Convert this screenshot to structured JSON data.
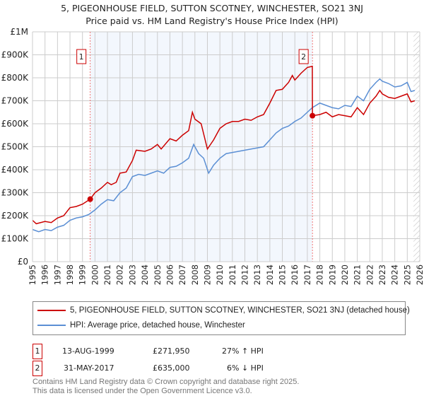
{
  "chart_data": {
    "type": "line",
    "title": "5, PIGEONHOUSE FIELD, SUTTON SCOTNEY, WINCHESTER, SO21 3NJ",
    "subtitle": "Price paid vs. HM Land Registry's House Price Index (HPI)",
    "xlim": [
      1995,
      2026
    ],
    "ylim": [
      0,
      1000000
    ],
    "yticks": [
      {
        "v": 0,
        "label": "£0"
      },
      {
        "v": 100000,
        "label": "£100K"
      },
      {
        "v": 200000,
        "label": "£200K"
      },
      {
        "v": 300000,
        "label": "£300K"
      },
      {
        "v": 400000,
        "label": "£400K"
      },
      {
        "v": 500000,
        "label": "£500K"
      },
      {
        "v": 600000,
        "label": "£600K"
      },
      {
        "v": 700000,
        "label": "£700K"
      },
      {
        "v": 800000,
        "label": "£800K"
      },
      {
        "v": 900000,
        "label": "£900K"
      },
      {
        "v": 1000000,
        "label": "£1M"
      }
    ],
    "xticks": [
      1995,
      1996,
      1997,
      1998,
      1999,
      2000,
      2001,
      2002,
      2003,
      2004,
      2005,
      2006,
      2007,
      2008,
      2009,
      2010,
      2011,
      2012,
      2013,
      2014,
      2015,
      2016,
      2017,
      2018,
      2019,
      2020,
      2021,
      2022,
      2023,
      2024,
      2025,
      2026
    ],
    "shaded_range": [
      1999.62,
      2017.41
    ],
    "hatched_from": 2025.5,
    "series": [
      {
        "name": "5, PIGEONHOUSE FIELD, SUTTON SCOTNEY, WINCHESTER, SO21 3NJ (detached house)",
        "color": "#cc0000",
        "x": [
          1995,
          1995.3,
          1996,
          1996.5,
          1997,
          1997.5,
          1998,
          1998.5,
          1999,
          1999.62,
          2000,
          2000.5,
          2001,
          2001.3,
          2001.7,
          2002,
          2002.5,
          2003,
          2003.3,
          2004,
          2004.5,
          2005,
          2005.3,
          2006,
          2006.5,
          2007,
          2007.5,
          2007.8,
          2008,
          2008.5,
          2009,
          2009.5,
          2010,
          2010.5,
          2011,
          2011.5,
          2012,
          2012.5,
          2013,
          2013.5,
          2014,
          2014.5,
          2015,
          2015.5,
          2015.8,
          2016,
          2016.5,
          2017,
          2017.4,
          2017.41,
          2018,
          2018.5,
          2019,
          2019.5,
          2020,
          2020.5,
          2021,
          2021.5,
          2022,
          2022.5,
          2022.8,
          2023,
          2023.5,
          2024,
          2024.5,
          2025,
          2025.3,
          2025.6
        ],
        "y": [
          180000,
          165000,
          175000,
          170000,
          190000,
          200000,
          235000,
          240000,
          250000,
          271950,
          300000,
          320000,
          345000,
          335000,
          345000,
          385000,
          390000,
          440000,
          485000,
          480000,
          490000,
          510000,
          490000,
          535000,
          525000,
          550000,
          570000,
          650000,
          620000,
          600000,
          490000,
          530000,
          580000,
          600000,
          610000,
          610000,
          620000,
          615000,
          630000,
          640000,
          690000,
          745000,
          750000,
          780000,
          810000,
          790000,
          820000,
          845000,
          850000,
          635000,
          640000,
          650000,
          630000,
          640000,
          635000,
          630000,
          670000,
          640000,
          690000,
          720000,
          745000,
          730000,
          715000,
          710000,
          720000,
          730000,
          695000,
          700000
        ]
      },
      {
        "name": "HPI: Average price, detached house, Winchester",
        "color": "#5b8fd4",
        "x": [
          1995,
          1995.5,
          1996,
          1996.5,
          1997,
          1997.5,
          1998,
          1998.5,
          1999,
          1999.5,
          2000,
          2000.5,
          2001,
          2001.5,
          2002,
          2002.5,
          2003,
          2003.5,
          2004,
          2004.5,
          2005,
          2005.5,
          2006,
          2006.5,
          2007,
          2007.5,
          2007.9,
          2008.3,
          2008.7,
          2009.1,
          2009.5,
          2010,
          2010.5,
          2011,
          2011.5,
          2012,
          2012.5,
          2013,
          2013.5,
          2014,
          2014.5,
          2015,
          2015.5,
          2016,
          2016.5,
          2017,
          2017.4,
          2018,
          2018.5,
          2019,
          2019.5,
          2020,
          2020.5,
          2021,
          2021.5,
          2022,
          2022.5,
          2022.8,
          2023,
          2023.5,
          2024,
          2024.5,
          2025,
          2025.3,
          2025.6
        ],
        "y": [
          140000,
          130000,
          140000,
          135000,
          150000,
          158000,
          180000,
          190000,
          195000,
          205000,
          225000,
          250000,
          270000,
          265000,
          300000,
          320000,
          370000,
          380000,
          375000,
          385000,
          395000,
          385000,
          410000,
          415000,
          430000,
          450000,
          510000,
          470000,
          450000,
          385000,
          420000,
          450000,
          470000,
          475000,
          480000,
          485000,
          490000,
          495000,
          500000,
          530000,
          560000,
          580000,
          590000,
          610000,
          625000,
          650000,
          670000,
          690000,
          680000,
          670000,
          665000,
          680000,
          675000,
          720000,
          700000,
          750000,
          780000,
          795000,
          785000,
          775000,
          760000,
          765000,
          780000,
          740000,
          745000
        ]
      }
    ],
    "sales": [
      {
        "id": "1",
        "date": "13-AUG-1999",
        "x": 1999.62,
        "price": 271950,
        "price_label": "£271,950",
        "hpi": "27% ↑ HPI"
      },
      {
        "id": "2",
        "date": "31-MAY-2017",
        "x": 2017.41,
        "price": 635000,
        "price_label": "£635,000",
        "hpi": "6% ↓ HPI"
      }
    ]
  },
  "legend": {
    "property": "5, PIGEONHOUSE FIELD, SUTTON SCOTNEY, WINCHESTER, SO21 3NJ (detached house)",
    "hpi": "HPI: Average price, detached house, Winchester"
  },
  "footer": {
    "line1": "Contains HM Land Registry data © Crown copyright and database right 2025.",
    "line2": "This data is licensed under the Open Government Licence v3.0."
  }
}
